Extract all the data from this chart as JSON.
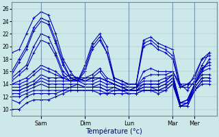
{
  "xlabel": "Température (°c)",
  "background_color": "#cce8e8",
  "plot_bg_color": "#cce8e8",
  "line_color": "#0000bb",
  "marker": "+",
  "markersize": 3,
  "linewidth": 0.8,
  "ylim": [
    9.0,
    27.0
  ],
  "yticks": [
    10,
    12,
    14,
    16,
    18,
    20,
    22,
    24,
    26
  ],
  "xlim": [
    0,
    28
  ],
  "day_ticks": [
    4,
    10,
    16,
    22,
    25
  ],
  "day_labels": [
    "Sam",
    "Dim",
    "Lun",
    "Mar",
    "Mer"
  ],
  "series": [
    [
      19.0,
      19.5,
      22.0,
      24.5,
      25.5,
      25.0,
      22.0,
      18.0,
      16.0,
      14.5,
      17.0,
      20.5,
      22.0,
      20.0,
      15.0,
      14.5,
      14.0,
      14.0,
      21.0,
      21.5,
      20.5,
      20.0,
      19.5,
      14.0,
      13.0,
      14.5,
      17.0,
      19.0
    ],
    [
      16.0,
      18.0,
      20.0,
      23.0,
      24.5,
      24.0,
      21.0,
      17.5,
      15.0,
      14.5,
      16.5,
      20.0,
      21.5,
      19.0,
      15.0,
      14.5,
      14.0,
      14.0,
      20.5,
      21.0,
      20.0,
      19.5,
      18.5,
      13.5,
      14.0,
      14.0,
      16.5,
      17.5
    ],
    [
      15.5,
      17.5,
      19.5,
      22.5,
      24.0,
      23.5,
      20.5,
      17.0,
      15.0,
      14.5,
      16.0,
      19.5,
      21.0,
      19.0,
      14.5,
      14.0,
      14.0,
      14.0,
      20.0,
      20.5,
      19.5,
      19.0,
      18.0,
      13.5,
      14.0,
      14.0,
      16.0,
      18.0
    ],
    [
      15.0,
      16.0,
      17.0,
      20.0,
      22.0,
      21.5,
      19.0,
      16.0,
      15.0,
      15.0,
      15.0,
      15.5,
      16.5,
      15.0,
      14.5,
      14.0,
      13.5,
      13.5,
      16.0,
      16.5,
      16.0,
      16.0,
      16.0,
      13.5,
      13.5,
      15.5,
      18.0,
      19.0
    ],
    [
      14.5,
      15.5,
      16.5,
      19.0,
      21.0,
      20.5,
      18.5,
      15.5,
      14.5,
      14.5,
      15.0,
      15.0,
      16.0,
      14.5,
      14.0,
      13.5,
      13.5,
      13.5,
      15.0,
      15.5,
      15.5,
      15.5,
      16.0,
      14.0,
      14.0,
      15.0,
      18.0,
      18.5
    ],
    [
      14.0,
      14.5,
      15.0,
      16.0,
      17.0,
      16.5,
      16.0,
      15.0,
      14.5,
      14.5,
      14.5,
      15.0,
      15.0,
      14.5,
      14.0,
      13.5,
      13.0,
      13.5,
      14.5,
      14.5,
      14.5,
      15.0,
      15.5,
      11.0,
      11.5,
      14.0,
      16.5,
      17.5
    ],
    [
      14.0,
      14.0,
      14.5,
      15.5,
      16.5,
      16.0,
      15.5,
      15.0,
      14.5,
      15.0,
      14.5,
      15.0,
      15.0,
      14.5,
      14.0,
      13.5,
      13.0,
      13.0,
      14.0,
      14.0,
      14.0,
      14.5,
      15.5,
      11.0,
      11.5,
      14.0,
      16.5,
      17.0
    ],
    [
      13.5,
      13.5,
      14.0,
      14.5,
      15.5,
      15.0,
      15.0,
      15.0,
      15.5,
      15.0,
      14.5,
      14.5,
      15.0,
      14.5,
      14.0,
      13.5,
      13.0,
      13.5,
      14.0,
      14.0,
      14.0,
      14.5,
      15.5,
      10.5,
      11.0,
      14.0,
      16.0,
      16.5
    ],
    [
      13.0,
      13.0,
      13.5,
      14.0,
      15.0,
      14.5,
      14.5,
      14.5,
      14.5,
      14.5,
      14.0,
      14.0,
      14.5,
      14.0,
      14.0,
      13.5,
      13.0,
      13.0,
      13.5,
      13.5,
      13.5,
      14.0,
      15.0,
      11.0,
      11.5,
      14.0,
      15.5,
      15.5
    ],
    [
      13.0,
      13.0,
      13.5,
      14.0,
      14.5,
      14.0,
      14.0,
      14.0,
      14.0,
      14.0,
      13.5,
      13.5,
      14.0,
      13.5,
      13.5,
      13.0,
      13.0,
      13.0,
      13.5,
      13.5,
      13.5,
      14.0,
      15.0,
      11.0,
      11.0,
      13.5,
      15.0,
      15.0
    ],
    [
      12.5,
      12.5,
      13.0,
      13.5,
      14.0,
      13.5,
      13.5,
      13.5,
      13.5,
      14.0,
      13.5,
      13.5,
      13.5,
      13.0,
      13.5,
      13.0,
      13.0,
      13.0,
      13.0,
      13.0,
      13.0,
      13.5,
      14.5,
      10.5,
      11.0,
      13.5,
      15.0,
      15.0
    ],
    [
      12.0,
      12.0,
      12.5,
      13.0,
      13.0,
      13.0,
      13.0,
      13.0,
      13.5,
      13.5,
      13.5,
      13.5,
      13.5,
      13.0,
      13.0,
      13.0,
      13.0,
      13.0,
      13.5,
      13.5,
      13.0,
      13.5,
      14.5,
      10.5,
      11.0,
      13.0,
      14.5,
      14.5
    ],
    [
      11.5,
      11.0,
      12.0,
      12.5,
      12.5,
      12.5,
      12.5,
      13.0,
      13.0,
      13.0,
      13.0,
      13.0,
      13.0,
      12.5,
      13.0,
      13.0,
      12.5,
      12.5,
      13.0,
      13.0,
      13.0,
      13.0,
      14.0,
      10.5,
      10.5,
      13.0,
      14.5,
      14.5
    ],
    [
      10.0,
      10.0,
      11.0,
      11.5,
      11.5,
      11.5,
      12.0,
      12.5,
      13.0,
      13.0,
      13.0,
      13.0,
      12.5,
      12.5,
      12.5,
      12.5,
      12.5,
      12.5,
      13.0,
      13.0,
      12.5,
      13.0,
      14.0,
      10.5,
      10.5,
      13.0,
      14.0,
      14.0
    ]
  ]
}
